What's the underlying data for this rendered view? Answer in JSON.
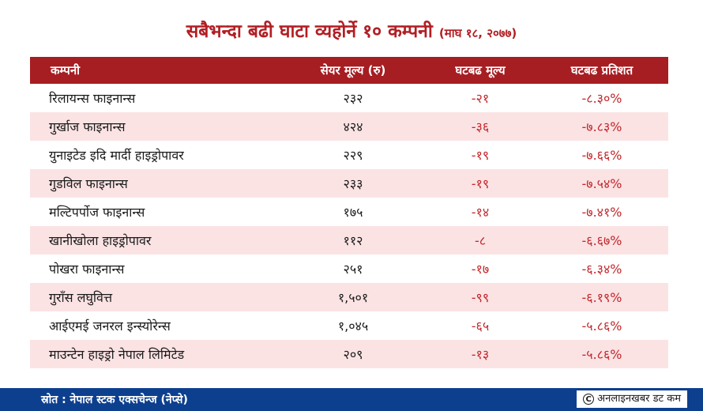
{
  "title": {
    "main": "सबैभन्दा बढी घाटा व्यहोर्ने १० कम्पनी",
    "date": "(माघ १८, २०७७)"
  },
  "table": {
    "headers": [
      "कम्पनी",
      "सेयर मूल्य (रु)",
      "घटबढ मूल्य",
      "घटबढ प्रतिशत"
    ],
    "rows": [
      {
        "company": "रिलायन्स फाइनान्स",
        "price": "२३२",
        "change": "-२१",
        "percent": "-८.३०%"
      },
      {
        "company": "गुर्खाज फाइनान्स",
        "price": "४२४",
        "change": "-३६",
        "percent": "-७.८३%"
      },
      {
        "company": "युनाइटेड इदि मार्दी हाइड्रोपावर",
        "price": "२२९",
        "change": "-१९",
        "percent": "-७.६६%"
      },
      {
        "company": "गुडविल फाइनान्स",
        "price": "२३३",
        "change": "-१९",
        "percent": "-७.५४%"
      },
      {
        "company": "मल्टिपर्पोज फाइनान्स",
        "price": "१७५",
        "change": "-१४",
        "percent": "-७.४१%"
      },
      {
        "company": "खानीखोला हाइड्रोपावर",
        "price": "११२",
        "change": "-८",
        "percent": "-६.६७%"
      },
      {
        "company": "पोखरा फाइनान्स",
        "price": "२५१",
        "change": "-१७",
        "percent": "-६.३४%"
      },
      {
        "company": "गुराँस लघुवित्त",
        "price": "१,५०१",
        "change": "-९९",
        "percent": "-६.१९%"
      },
      {
        "company": "आईएमई जनरल इन्स्योरेन्स",
        "price": "१,०४५",
        "change": "-६५",
        "percent": "-५.८६%"
      },
      {
        "company": "माउन्टेन हाइड्रो नेपाल लिमिटेड",
        "price": "२०९",
        "change": "-१३",
        "percent": "-५.८६%"
      }
    ]
  },
  "footer": {
    "source": "स्रोत : नेपाल स्टक एक्सचेन्ज (नेप्से)",
    "credit": "अनलाइनखबर डट कम",
    "credit_icon": "copyright-icon"
  },
  "colors": {
    "title": "#b11e23",
    "header_bg": "#a61d22",
    "row_alt": "#fbe3e4",
    "negative": "#c2262b",
    "footer_bg": "#0d3f8f"
  }
}
